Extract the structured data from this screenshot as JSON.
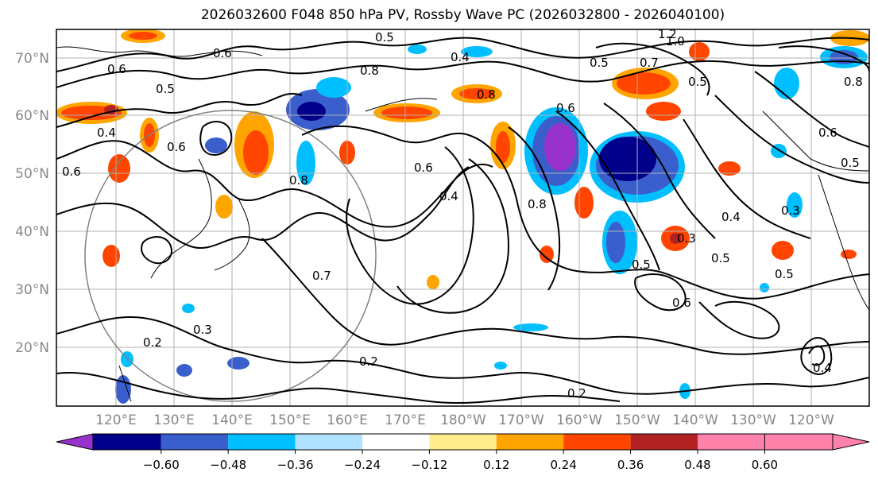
{
  "title": "2026032600 F048 850 hPa PV, Rossby Wave PC (2026032800 - 2026040100)",
  "lat_labels": [
    "70°N",
    "60°N",
    "50°N",
    "40°N",
    "30°N",
    "20°N"
  ],
  "lon_labels": [
    "120°E",
    "130°E",
    "140°E",
    "150°E",
    "160°E",
    "170°E",
    "180°W",
    "170°W",
    "160°W",
    "150°W",
    "140°W",
    "130°W",
    "120°W"
  ],
  "colorbar": {
    "ticks": [
      "−0.60",
      "−0.48",
      "−0.36",
      "−0.24",
      "−0.12",
      "0.12",
      "0.24",
      "0.36",
      "0.48",
      "0.60"
    ],
    "colors": [
      "#9932CC",
      "#00008B",
      "#3A5FCD",
      "#00BFFF",
      "#B0E2FF",
      "#FFFFFF",
      "#FFEC8B",
      "#FFA500",
      "#FF4500",
      "#B22222",
      "#FF82AB"
    ]
  },
  "contour_labels": [
    "0.5",
    "0.4",
    "1.2",
    "1.0",
    "0.8",
    "0.6",
    "0.7",
    "0.8",
    "0.5",
    "0.5",
    "0.8",
    "0.5",
    "0.6",
    "0.4",
    "0.6",
    "0.6",
    "0.6",
    "0.8",
    "0.6",
    "0.6",
    "0.5",
    "0.4",
    "0.8",
    "0.3",
    "0.4",
    "0.5",
    "0.3",
    "0.5",
    "0.7",
    "0.5",
    "0.6",
    "0.2",
    "0.3",
    "0.2",
    "0.2",
    "0.4"
  ]
}
